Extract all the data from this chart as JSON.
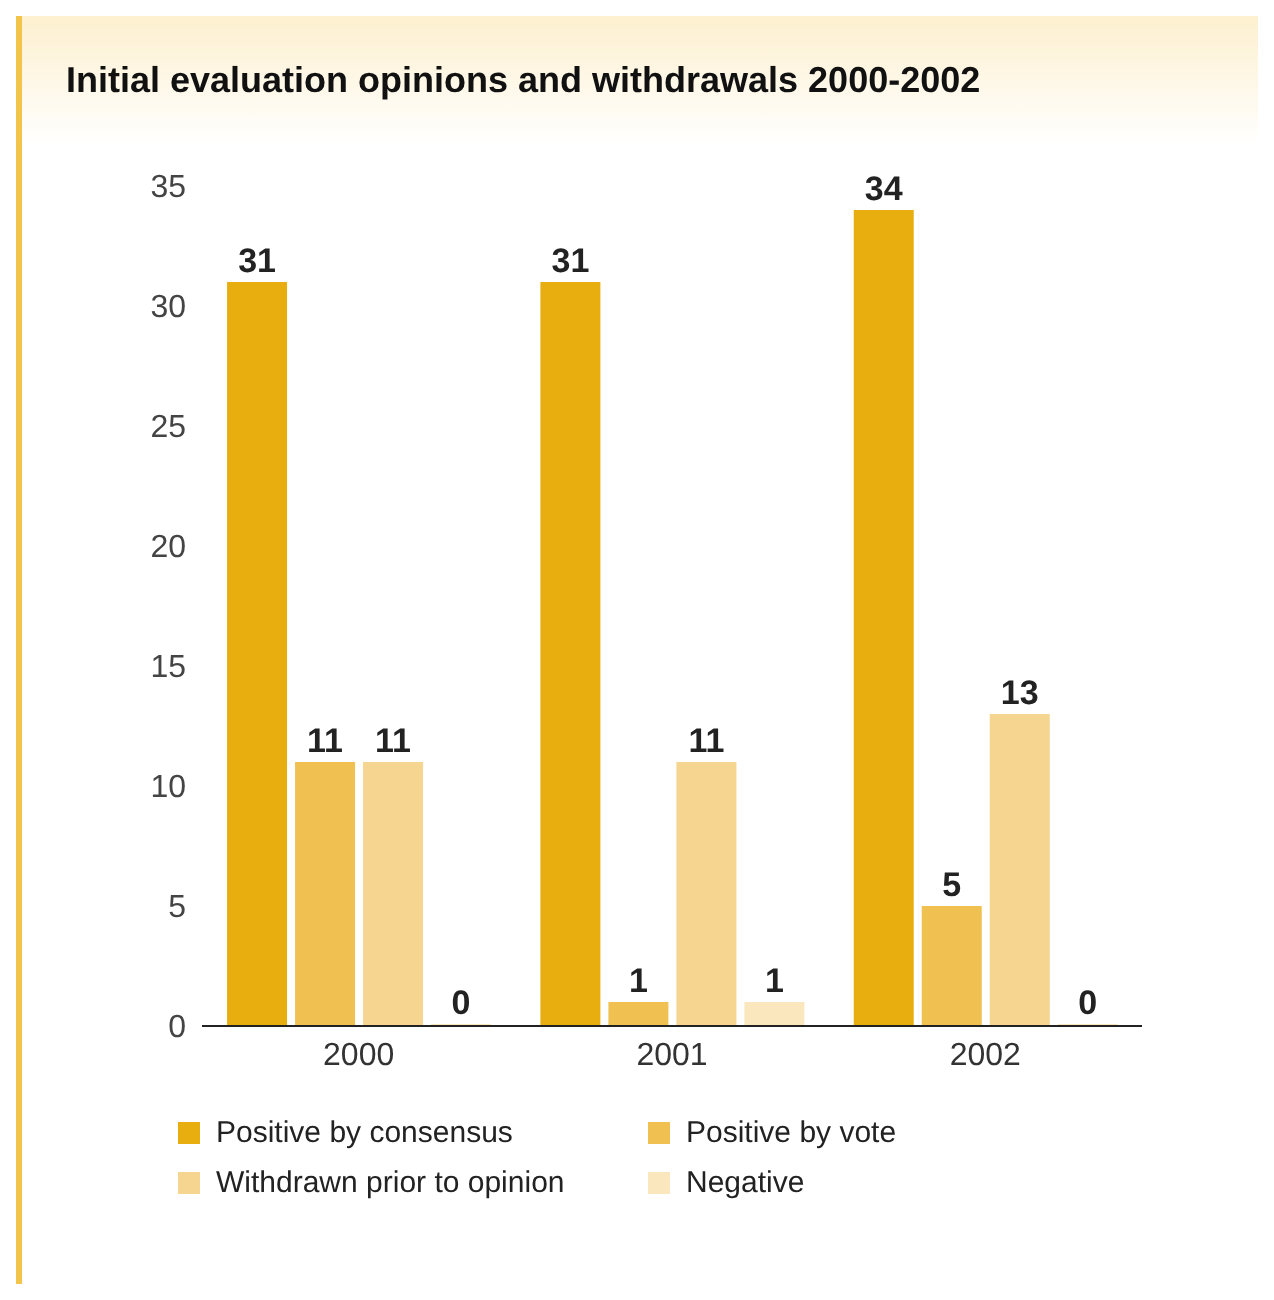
{
  "chart_data": {
    "type": "bar",
    "title": "Initial evaluation opinions and withdrawals 2000-2002",
    "categories": [
      "2000",
      "2001",
      "2002"
    ],
    "series": [
      {
        "name": "Positive by consensus",
        "color": "#e8ae10",
        "values": [
          31,
          31,
          34
        ]
      },
      {
        "name": "Positive by vote",
        "color": "#f0c150",
        "values": [
          11,
          1,
          5
        ]
      },
      {
        "name": "Withdrawn prior to opinion",
        "color": "#f6d590",
        "values": [
          11,
          11,
          13
        ]
      },
      {
        "name": "Negative",
        "color": "#fbe7bd",
        "values": [
          0,
          1,
          0
        ]
      }
    ],
    "ylim": [
      0,
      35
    ],
    "yticks": [
      0,
      5,
      10,
      15,
      20,
      25,
      30,
      35
    ],
    "legend": "bottom",
    "data_labels": true
  }
}
